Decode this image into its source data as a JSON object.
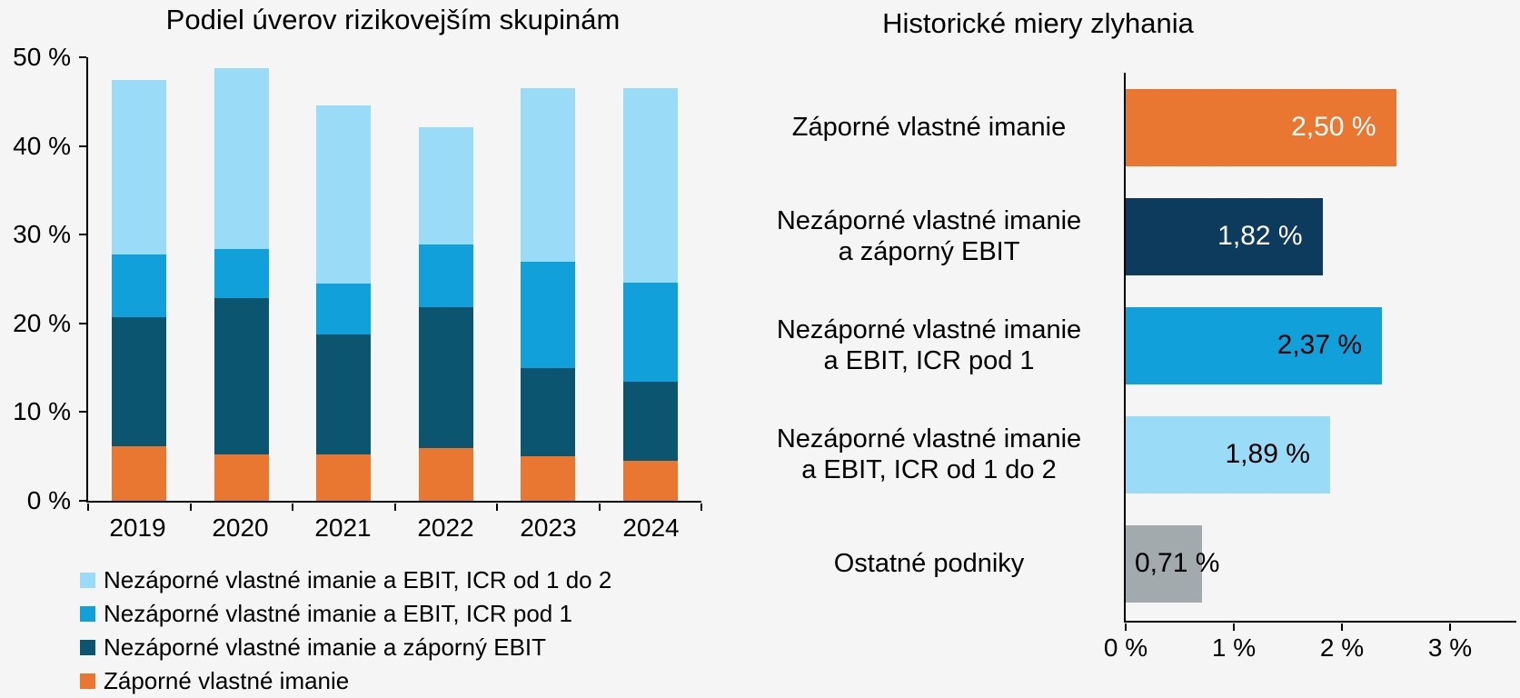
{
  "page": {
    "background": "#F5F5F6",
    "text_color": "#000000"
  },
  "left_chart": {
    "title": "Podiel úverov rizikovejším skupinám"
  },
  "right_chart": {
    "title": "Historické miery zlyhania"
  },
  "chart_data": [
    {
      "type": "bar",
      "stacked": true,
      "title": "Podiel úverov rizikovejším skupinám",
      "categories": [
        "2019",
        "2020",
        "2021",
        "2022",
        "2023",
        "2024"
      ],
      "series": [
        {
          "name": "Záporné vlastné imanie",
          "color": "#E97732",
          "values": [
            6.2,
            5.2,
            5.2,
            5.9,
            5.0,
            4.5
          ]
        },
        {
          "name": "Nezáporné vlastné imanie a záporný EBIT",
          "color": "#0C5571",
          "values": [
            14.5,
            17.6,
            13.6,
            15.9,
            10.0,
            8.9
          ]
        },
        {
          "name": "Nezáporné vlastné imanie a EBIT, ICR pod 1",
          "color": "#12A0DB",
          "values": [
            7.1,
            5.6,
            5.7,
            7.1,
            12.0,
            11.2
          ]
        },
        {
          "name": "Nezáporné vlastné imanie a EBIT, ICR od 1 do 2",
          "color": "#9ADCF8",
          "values": [
            19.6,
            20.4,
            20.1,
            13.2,
            19.5,
            21.9
          ]
        }
      ],
      "ylim": [
        0,
        50
      ],
      "y_ticks": [
        {
          "value": 0,
          "label": "0 %"
        },
        {
          "value": 10,
          "label": "10 %"
        },
        {
          "value": 20,
          "label": "20 %"
        },
        {
          "value": 30,
          "label": "30 %"
        },
        {
          "value": 40,
          "label": "40 %"
        },
        {
          "value": 50,
          "label": "50 %"
        }
      ],
      "grid": false,
      "legend_position": "bottom-left",
      "legend": [
        {
          "label": "Nezáporné vlastné imanie a EBIT, ICR od 1 do 2",
          "color": "#9ADCF8"
        },
        {
          "label": "Nezáporné vlastné imanie a EBIT, ICR pod 1",
          "color": "#12A0DB"
        },
        {
          "label": "Nezáporné vlastné imanie a záporný EBIT",
          "color": "#0C5571"
        },
        {
          "label": "Záporné vlastné imanie",
          "color": "#E97732"
        }
      ]
    },
    {
      "type": "bar",
      "orientation": "horizontal",
      "title": "Historické miery zlyhania",
      "categories": [
        "Záporné vlastné imanie",
        "Nezáporné vlastné imanie\na záporný EBIT",
        "Nezáporné vlastné imanie\na EBIT, ICR pod 1",
        "Nezáporné vlastné imanie\na EBIT, ICR od 1 do 2",
        "Ostatné podniky"
      ],
      "values": [
        2.5,
        1.82,
        2.37,
        1.89,
        0.71
      ],
      "value_labels": [
        "2,50 %",
        "1,82 %",
        "2,37 %",
        "1,89 %",
        "0,71 %"
      ],
      "bar_colors": [
        "#E97732",
        "#0C3B5E",
        "#12A0DB",
        "#9ADCF8",
        "#A3AAAE"
      ],
      "value_label_colors": [
        "#FFFFFF",
        "#FFFFFF",
        "#000000",
        "#000000",
        "#000000"
      ],
      "value_label_placement": [
        "inside-right",
        "inside-right",
        "inside-right",
        "inside-right",
        "inside-left-overflow"
      ],
      "xlim": [
        0,
        3.6
      ],
      "x_ticks": [
        {
          "value": 0,
          "label": "0 %"
        },
        {
          "value": 1,
          "label": "1 %"
        },
        {
          "value": 2,
          "label": "2 %"
        },
        {
          "value": 3,
          "label": "3 %"
        }
      ],
      "grid": false
    }
  ]
}
